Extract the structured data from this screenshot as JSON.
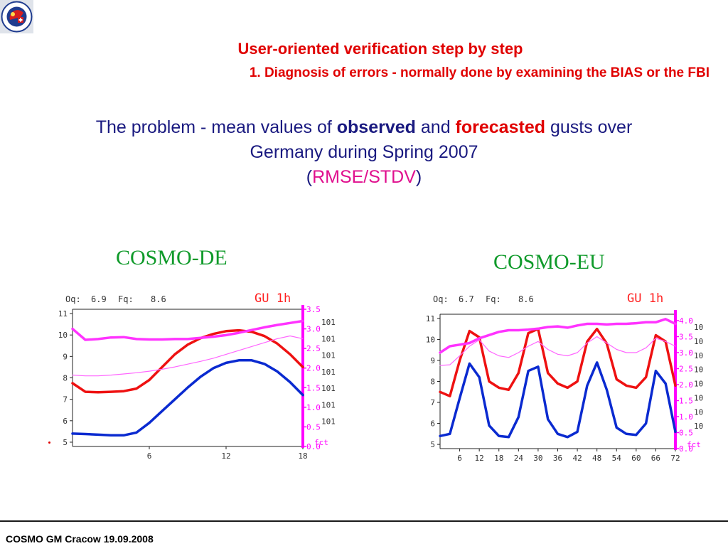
{
  "logo": {
    "alt_icon": "cosmo-logo-icon",
    "colors": [
      "#1f3c8f",
      "#ffffff",
      "#d61f1f"
    ]
  },
  "title_line1": "User-oriented verification step by step",
  "title_line2": "1. Diagnosis of errors - normally done by examining the BIAS or the FBI",
  "problem": {
    "text_before": "The problem - mean values of ",
    "observed": "observed",
    "text_mid": " and ",
    "forecasted": "forecasted",
    "text_after": " gusts over",
    "line2": "Germany during Spring 2007",
    "paren_open": "(",
    "rmse": "RMSE/STDV",
    "paren_close": ")"
  },
  "models": {
    "de": "COSMO-DE",
    "eu": "COSMO-EU"
  },
  "footer": "COSMO GM Cracow 19.09.2008",
  "colors": {
    "title": "#e00000",
    "blue_text": "#1a1a80",
    "green": "#0f9a2a",
    "magenta": "#ff00ff",
    "observed": "#0a2ad0",
    "forecast": "#ee1111"
  },
  "chart_data": [
    {
      "type": "line",
      "header": {
        "oq_label": "Oq:",
        "oq": "6.9",
        "fq_label": "Fq:",
        "fq": "8.6",
        "tag": "GU  1h"
      },
      "x": [
        0,
        1,
        2,
        3,
        4,
        5,
        6,
        7,
        8,
        9,
        10,
        11,
        12,
        13,
        14,
        15,
        16,
        17,
        18
      ],
      "xticks": [
        "6",
        "12",
        "18"
      ],
      "xtick_values": [
        6,
        12,
        18
      ],
      "ylim": [
        4.8,
        11.2
      ],
      "yticks": [
        "5",
        "6",
        "7",
        "8",
        "9",
        "10",
        "11"
      ],
      "right_ticks": [
        "3.5",
        "3.0",
        "2.5",
        "2.0",
        "1.5",
        "1.0",
        "0.5",
        "0.0"
      ],
      "right_ylim": [
        0,
        3.5
      ],
      "right_side_labels": [
        "101",
        "101",
        "101",
        "101",
        "101",
        "101",
        "101"
      ],
      "fct_label": "fct",
      "series": [
        {
          "color": "#0a2ad0",
          "width": 3.5,
          "axis": "left",
          "values": [
            5.4,
            5.38,
            5.35,
            5.32,
            5.32,
            5.45,
            5.9,
            6.45,
            7.0,
            7.55,
            8.05,
            8.45,
            8.7,
            8.82,
            8.82,
            8.65,
            8.3,
            7.8,
            7.2
          ]
        },
        {
          "color": "#ee1111",
          "width": 3.5,
          "axis": "left",
          "values": [
            7.75,
            7.35,
            7.33,
            7.35,
            7.38,
            7.5,
            7.9,
            8.5,
            9.1,
            9.55,
            9.85,
            10.05,
            10.18,
            10.22,
            10.15,
            9.95,
            9.6,
            9.1,
            8.5
          ]
        },
        {
          "color": "#ff33ff",
          "width": 3.5,
          "axis": "right",
          "values": [
            3.0,
            2.72,
            2.74,
            2.78,
            2.79,
            2.74,
            2.73,
            2.73,
            2.74,
            2.74,
            2.77,
            2.8,
            2.84,
            2.9,
            2.97,
            3.04,
            3.1,
            3.15,
            3.2
          ]
        },
        {
          "color": "#ff66ff",
          "width": 1.2,
          "axis": "right",
          "values": [
            1.82,
            1.8,
            1.8,
            1.82,
            1.85,
            1.88,
            1.92,
            1.97,
            2.03,
            2.1,
            2.17,
            2.25,
            2.35,
            2.45,
            2.55,
            2.65,
            2.75,
            2.82,
            2.75
          ]
        }
      ]
    },
    {
      "type": "line",
      "header": {
        "oq_label": "Oq:",
        "oq": "6.7",
        "fq_label": "Fq:",
        "fq": "8.6",
        "tag": "GU  1h"
      },
      "x": [
        0,
        3,
        6,
        9,
        12,
        15,
        18,
        21,
        24,
        27,
        30,
        33,
        36,
        39,
        42,
        45,
        48,
        51,
        54,
        57,
        60,
        63,
        66,
        69,
        72
      ],
      "xticks": [
        "6",
        "12",
        "18",
        "24",
        "30",
        "36",
        "42",
        "48",
        "54",
        "60",
        "66",
        "72"
      ],
      "xtick_values": [
        6,
        12,
        18,
        24,
        30,
        36,
        42,
        48,
        54,
        60,
        66,
        72
      ],
      "ylim": [
        4.8,
        11.2
      ],
      "yticks": [
        "5",
        "6",
        "7",
        "8",
        "9",
        "10",
        "11"
      ],
      "right_ticks": [
        "4.0",
        "3.5",
        "3.0",
        "2.5",
        "2.0",
        "1.5",
        "1.0",
        "0.5",
        "0.0"
      ],
      "right_ylim": [
        0,
        4.2
      ],
      "right_side_labels": [
        "10",
        "10",
        "10",
        "10",
        "10",
        "10",
        "10",
        "10"
      ],
      "fct_label": "fct",
      "series": [
        {
          "color": "#0a2ad0",
          "width": 3.5,
          "axis": "left",
          "values": [
            5.4,
            5.5,
            7.2,
            8.85,
            8.2,
            5.9,
            5.4,
            5.35,
            6.3,
            8.5,
            8.7,
            6.2,
            5.5,
            5.35,
            5.6,
            7.8,
            8.9,
            7.6,
            5.8,
            5.5,
            5.45,
            6.0,
            8.5,
            7.9,
            5.6
          ]
        },
        {
          "color": "#ee1111",
          "width": 3.5,
          "axis": "left",
          "values": [
            7.5,
            7.3,
            9.0,
            10.4,
            10.1,
            8.0,
            7.7,
            7.6,
            8.4,
            10.3,
            10.5,
            8.4,
            7.9,
            7.7,
            8.0,
            9.9,
            10.5,
            9.8,
            8.1,
            7.8,
            7.7,
            8.2,
            10.2,
            9.9,
            7.8
          ]
        },
        {
          "color": "#ff33ff",
          "width": 3.5,
          "axis": "right",
          "values": [
            3.0,
            3.2,
            3.25,
            3.3,
            3.45,
            3.55,
            3.65,
            3.7,
            3.7,
            3.72,
            3.75,
            3.8,
            3.82,
            3.78,
            3.85,
            3.9,
            3.9,
            3.88,
            3.9,
            3.9,
            3.92,
            3.95,
            3.95,
            4.05,
            3.9
          ]
        },
        {
          "color": "#ff66ff",
          "width": 1.2,
          "axis": "right",
          "values": [
            2.6,
            2.62,
            2.9,
            3.2,
            3.4,
            3.05,
            2.9,
            2.85,
            3.0,
            3.2,
            3.35,
            3.1,
            2.95,
            2.9,
            3.0,
            3.3,
            3.5,
            3.3,
            3.1,
            3.0,
            3.0,
            3.15,
            3.45,
            3.35,
            3.2
          ]
        }
      ]
    }
  ]
}
